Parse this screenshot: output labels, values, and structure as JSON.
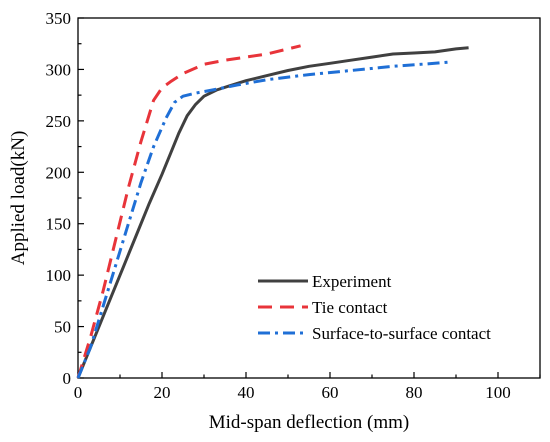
{
  "chart_data": {
    "type": "line",
    "title": "",
    "xlabel": "Mid-span deflection (mm)",
    "ylabel": "Applied load(kN)",
    "xlim": [
      0,
      110
    ],
    "ylim": [
      0,
      350
    ],
    "xticks": [
      0,
      20,
      40,
      60,
      80,
      100
    ],
    "yticks": [
      0,
      50,
      100,
      150,
      200,
      250,
      300,
      350
    ],
    "grid": false,
    "legend_position": "bottom-right",
    "series": [
      {
        "name": "Experiment",
        "color": "#404040",
        "style": "solid",
        "x": [
          0,
          2,
          5,
          8,
          11,
          14,
          17,
          20,
          22,
          24,
          26,
          28,
          30,
          33,
          36,
          40,
          45,
          50,
          55,
          60,
          65,
          70,
          75,
          80,
          85,
          90,
          93
        ],
        "y": [
          0,
          20,
          50,
          80,
          110,
          140,
          170,
          198,
          218,
          238,
          255,
          266,
          274,
          280,
          284,
          289,
          294,
          299,
          303,
          306,
          309,
          312,
          315,
          316,
          317,
          320,
          321
        ]
      },
      {
        "name": "Tie contact",
        "color": "#e8343a",
        "style": "dashed",
        "x": [
          0,
          3,
          6,
          9,
          12,
          15,
          18,
          20,
          22,
          25,
          30,
          35,
          40,
          45,
          50,
          53
        ],
        "y": [
          0,
          40,
          85,
          135,
          185,
          230,
          270,
          282,
          288,
          296,
          305,
          309,
          312,
          315,
          320,
          323
        ]
      },
      {
        "name": "Surface-to-surface contact",
        "color": "#1f6fd6",
        "style": "dashdot",
        "x": [
          0,
          3,
          6,
          9,
          12,
          15,
          18,
          21,
          23,
          25,
          28,
          32,
          38,
          45,
          55,
          65,
          75,
          85,
          88
        ],
        "y": [
          0,
          30,
          70,
          110,
          150,
          190,
          225,
          253,
          268,
          274,
          277,
          280,
          285,
          290,
          295,
          299,
          303,
          306,
          307
        ]
      }
    ]
  }
}
